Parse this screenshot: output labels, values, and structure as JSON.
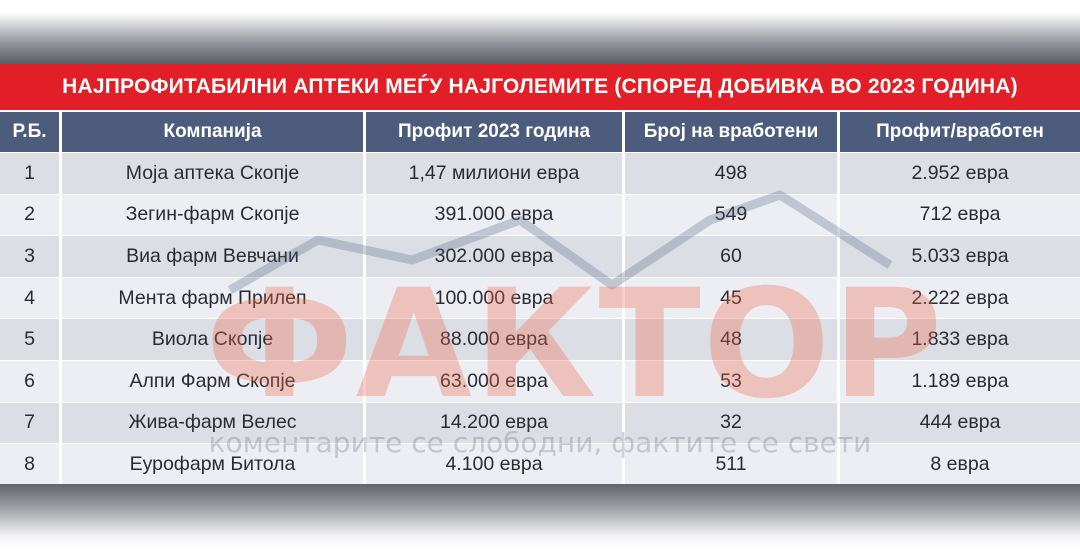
{
  "title": "НАЈПРОФИТАБИЛНИ АПТЕКИ МЕЃУ НАЈГОЛЕМИТЕ (СПОРЕД ДОБИВКА ВО 2023 ГОДИНА)",
  "columns": [
    "Р.Б.",
    "Компанија",
    "Профит 2023 година",
    "Број на вработени",
    "Профит/вработен"
  ],
  "rows": [
    [
      "1",
      "Моја аптека Скопје",
      "1,47 милиони евра",
      "498",
      "2.952 евра"
    ],
    [
      "2",
      "Зегин-фарм Скопје",
      "391.000 евра",
      "549",
      "712 евра"
    ],
    [
      "3",
      "Виа фарм Вевчани",
      "302.000 евра",
      "60",
      "5.033 евра"
    ],
    [
      "4",
      "Мента фарм Прилеп",
      "100.000 евра",
      "45",
      "2.222 евра"
    ],
    [
      "5",
      "Виола Скопје",
      "88.000 евра",
      "48",
      "1.833 евра"
    ],
    [
      "6",
      "Алпи Фарм Скопје",
      "63.000 евра",
      "53",
      "1.189 евра"
    ],
    [
      "7",
      "Жива-фарм Велес",
      "14.200 евра",
      "32",
      "444 евра"
    ],
    [
      "8",
      "Еурофарм Битола",
      "4.100 евра",
      "511",
      "8 евра"
    ]
  ],
  "watermark": {
    "word": "ФАКТОР",
    "tagline": "коментарите се слободни, фактите се свети"
  },
  "colors": {
    "title_bg": "#e21f26",
    "header_bg": "#4d5c7d",
    "row_odd": "#dcdee5",
    "row_even": "#eceef3",
    "watermark": "#f06846"
  }
}
